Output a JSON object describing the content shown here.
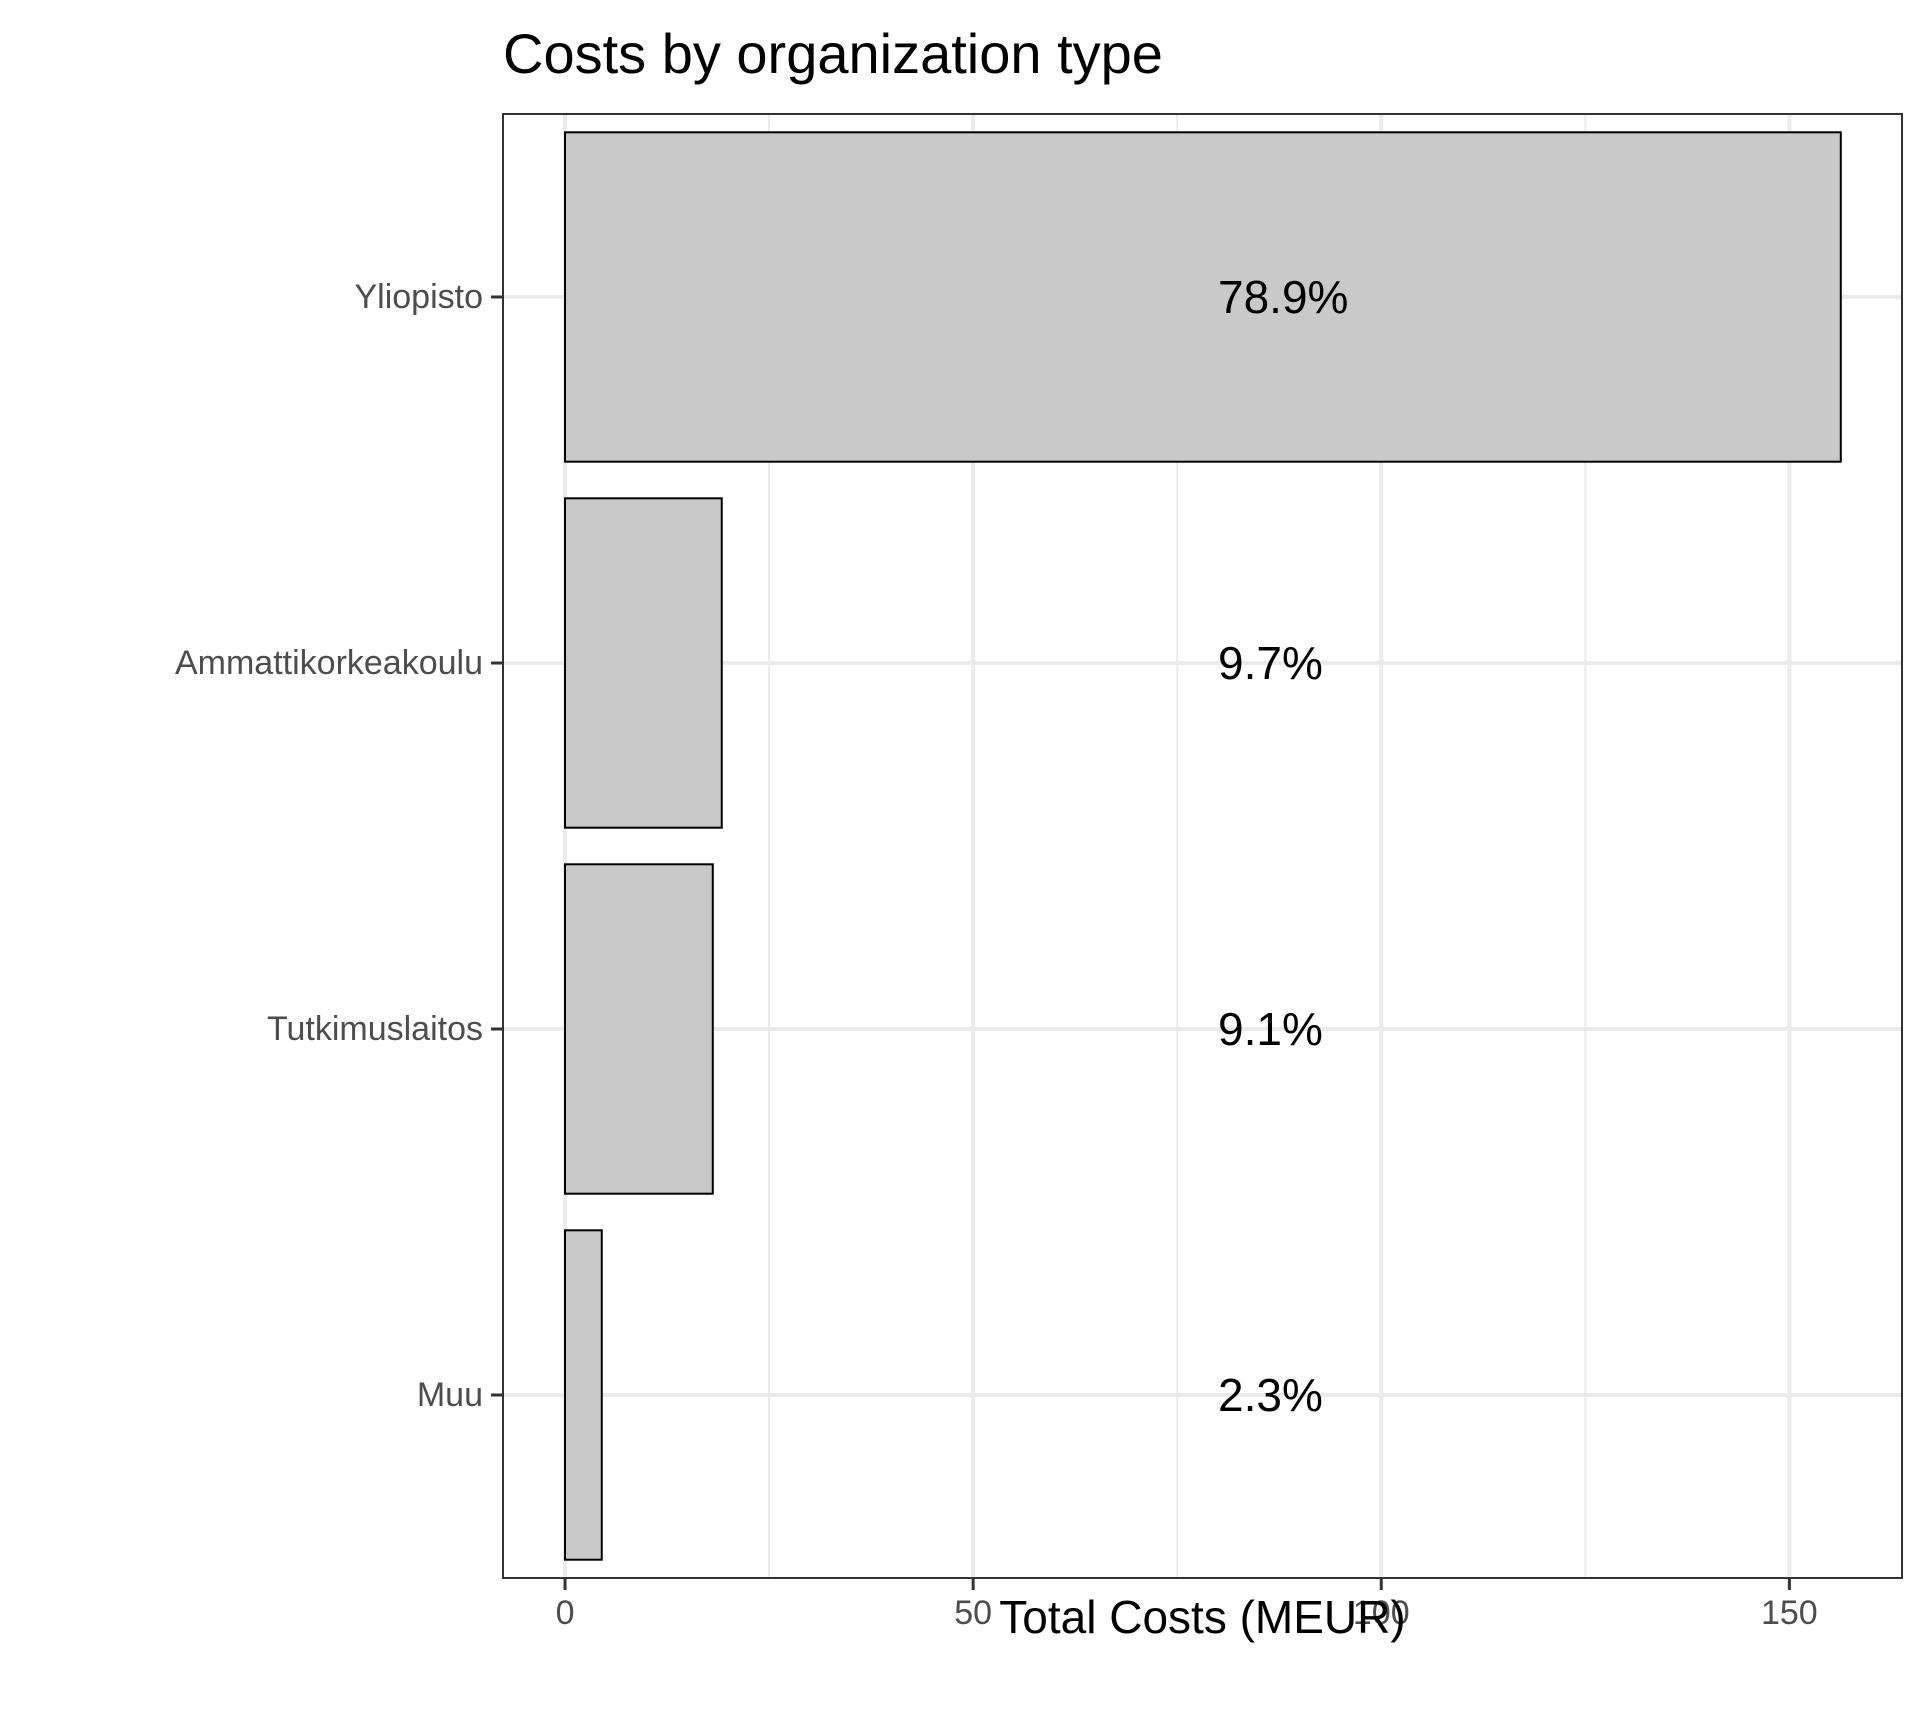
{
  "chart_data": {
    "type": "bar",
    "orientation": "horizontal",
    "title": "Costs by organization type",
    "xlabel": "Total Costs (MEUR)",
    "ylabel": "",
    "categories": [
      "Yliopisto",
      "Ammattikorkeakoulu",
      "Tutkimuslaitos",
      "Muu"
    ],
    "values": [
      156.3,
      19.2,
      18.1,
      4.5
    ],
    "labels": [
      "78.9%",
      "9.7%",
      "9.1%",
      "2.3%"
    ],
    "label_x": 80,
    "xlim": [
      -7.6,
      163.8
    ],
    "xticks": [
      0,
      50,
      100,
      150
    ],
    "xtick_labels": [
      "0",
      "50",
      "100",
      "150"
    ],
    "grid": true,
    "legend": "none",
    "colors": {
      "bar_fill": "#c9c9c9",
      "bar_stroke": "#000000",
      "grid": "#ebebeb",
      "panel_border": "#333333",
      "tick_label": "#4d4d4d",
      "text": "#000000"
    }
  }
}
